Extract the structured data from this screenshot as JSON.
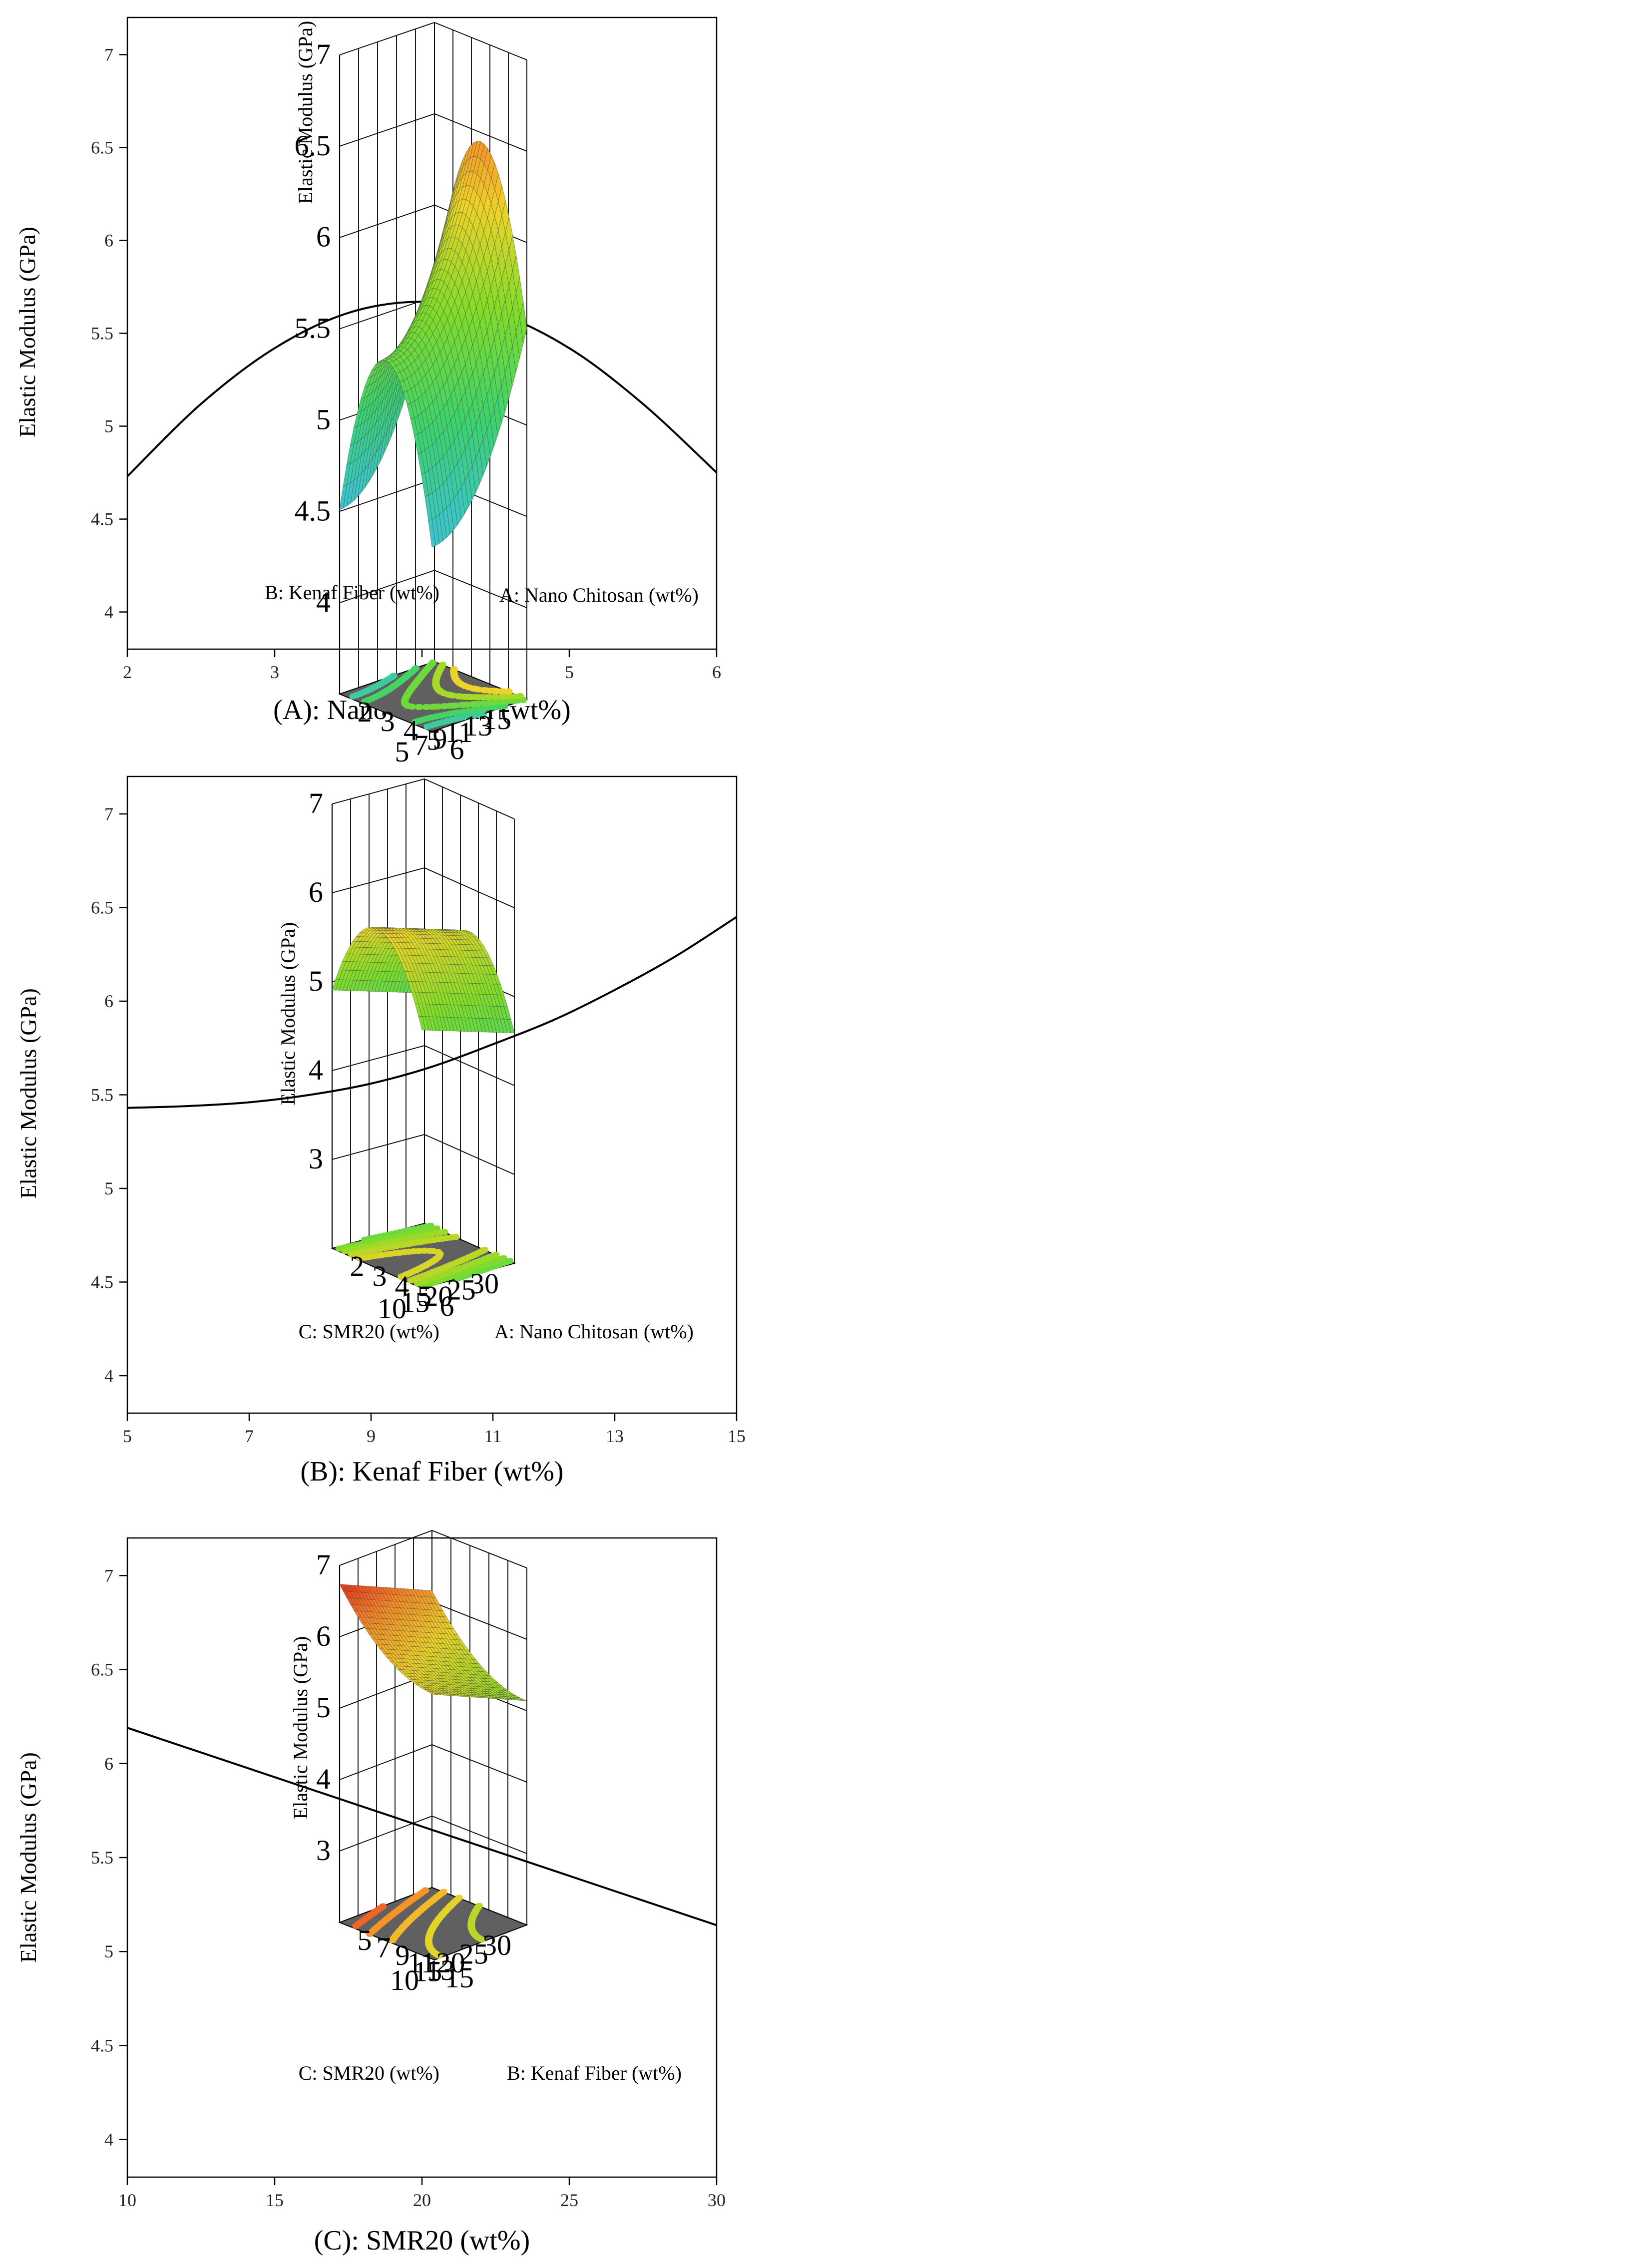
{
  "chart_data": [
    {
      "type": "line",
      "panel": "A-2d",
      "xlabel": "(A): Nano Chitosan (wt%)",
      "ylabel": "Elastic Modulus (GPa)",
      "xlim": [
        2,
        6
      ],
      "ylim": [
        3.8,
        7.2
      ],
      "xticks": [
        2,
        3,
        4,
        5,
        6
      ],
      "yticks": [
        4,
        4.5,
        5,
        5.5,
        6,
        6.5,
        7
      ],
      "x": [
        2,
        2.5,
        3,
        3.5,
        4,
        4.5,
        5,
        5.5,
        6
      ],
      "y": [
        4.73,
        5.12,
        5.42,
        5.61,
        5.67,
        5.61,
        5.42,
        5.12,
        4.75
      ]
    },
    {
      "type": "line",
      "panel": "B-2d",
      "xlabel": "(B): Kenaf Fiber (wt%)",
      "ylabel": "Elastic Modulus (GPa)",
      "xlim": [
        5,
        15
      ],
      "ylim": [
        3.8,
        7.2
      ],
      "xticks": [
        5,
        7,
        9,
        11,
        13,
        15
      ],
      "yticks": [
        4,
        4.5,
        5,
        5.5,
        6,
        6.5,
        7
      ],
      "x": [
        5,
        6,
        7,
        8,
        9,
        10,
        11,
        12,
        13,
        14,
        15
      ],
      "y": [
        5.43,
        5.44,
        5.46,
        5.5,
        5.56,
        5.65,
        5.77,
        5.9,
        6.06,
        6.24,
        6.45
      ]
    },
    {
      "type": "line",
      "panel": "C-2d",
      "xlabel": "(C): SMR20 (wt%)",
      "ylabel": "Elastic Modulus (GPa)",
      "xlim": [
        10,
        30
      ],
      "ylim": [
        3.8,
        7.2
      ],
      "xticks": [
        10,
        15,
        20,
        25,
        30
      ],
      "yticks": [
        4,
        4.5,
        5,
        5.5,
        6,
        6.5,
        7
      ],
      "x": [
        10,
        30
      ],
      "y": [
        6.19,
        5.14
      ]
    },
    {
      "type": "surface",
      "panel": "A-B-3d",
      "zlabel": "Elastic Modulus (GPa)",
      "zticks": [
        "4",
        "4.5",
        "5",
        "5.5",
        "6",
        "6.5",
        "7"
      ],
      "x_axis": {
        "label": "A: Nano Chitosan (wt%)",
        "ticks": [
          "2",
          "3",
          "4",
          "5",
          "6"
        ]
      },
      "y_axis": {
        "label": "B: Kenaf Fiber (wt%)",
        "ticks": [
          "5",
          "7",
          "9",
          "11",
          "13",
          "15"
        ]
      },
      "zrange": [
        3.5,
        7
      ]
    },
    {
      "type": "surface",
      "panel": "A-C-3d",
      "zlabel": "Elastic Modulus (GPa)",
      "zticks": [
        "3",
        "4",
        "5",
        "6",
        "7"
      ],
      "x_axis": {
        "label": "A: Nano Chitosan (wt%)",
        "ticks": [
          "2",
          "3",
          "4",
          "5",
          "6"
        ]
      },
      "y_axis": {
        "label": "C: SMR20 (wt%)",
        "ticks": [
          "10",
          "15",
          "20",
          "25",
          "30"
        ]
      },
      "zrange": [
        2,
        7
      ]
    },
    {
      "type": "surface",
      "panel": "B-C-3d",
      "zlabel": "Elastic Modulus (GPa)",
      "zticks": [
        "3",
        "4",
        "5",
        "6",
        "7"
      ],
      "x_axis": {
        "label": "B: Kenaf Fiber (wt%)",
        "ticks": [
          "5",
          "7",
          "9",
          "11",
          "13",
          "15"
        ]
      },
      "y_axis": {
        "label": "C: SMR20 (wt%)",
        "ticks": [
          "10",
          "15",
          "20",
          "25",
          "30"
        ]
      },
      "zrange": [
        2,
        7
      ]
    }
  ]
}
